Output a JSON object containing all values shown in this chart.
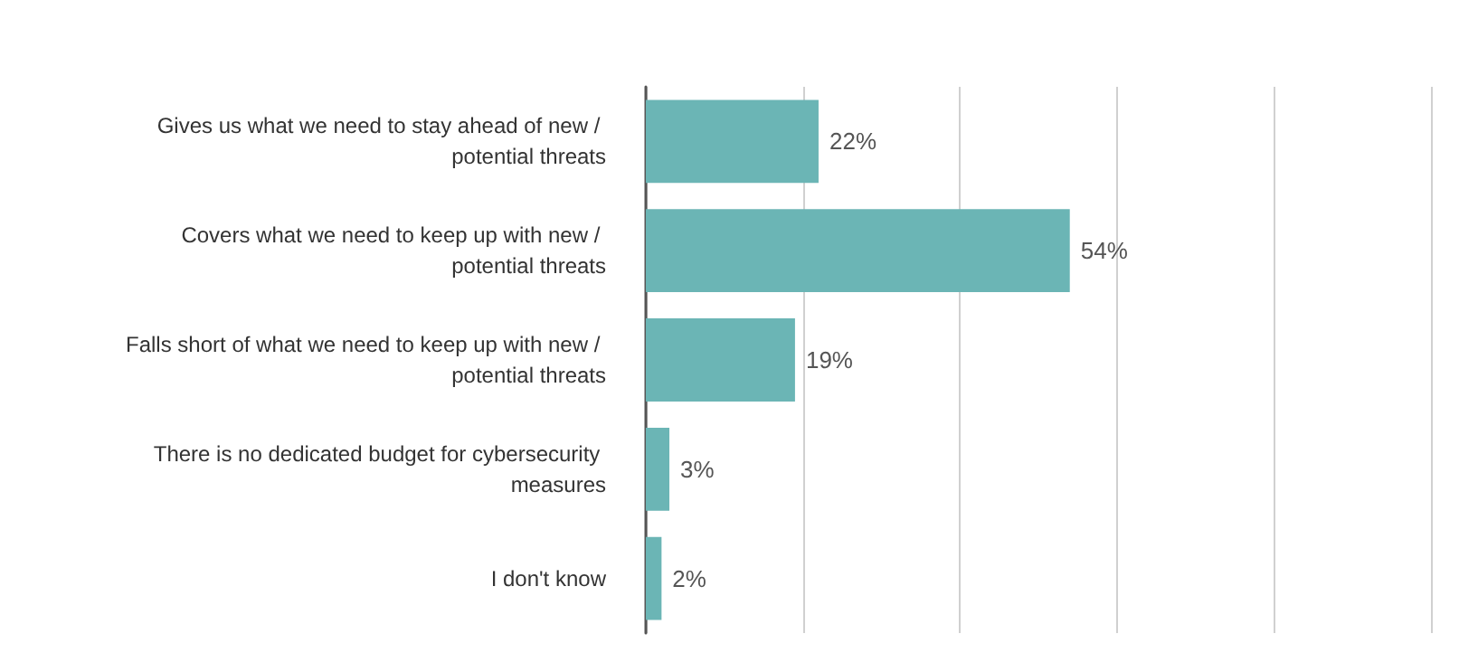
{
  "chart_data": {
    "type": "bar",
    "orientation": "horizontal",
    "categories": [
      "Gives us what we need to stay ahead of new / potential threats",
      "Covers what we need to keep up with new / potential threats",
      "Falls short of what we need to keep up with new / potential threats",
      "There is no dedicated budget for cybersecurity measures",
      "I don't know"
    ],
    "values": [
      22,
      54,
      19,
      3,
      2
    ],
    "value_labels": [
      "22%",
      "54%",
      "19%",
      "3%",
      "2%"
    ],
    "color": "#6bb5b5",
    "xlim": [
      0,
      100
    ],
    "xticks": [
      {
        "value": 0,
        "label": null
      },
      {
        "value": 20,
        "label": null
      },
      {
        "value": 40,
        "label": null
      },
      {
        "value": 60,
        "label": null
      },
      {
        "value": 80,
        "label": null
      },
      {
        "value": 100,
        "label": null
      }
    ],
    "grid": "x",
    "tick_labels": "y"
  }
}
